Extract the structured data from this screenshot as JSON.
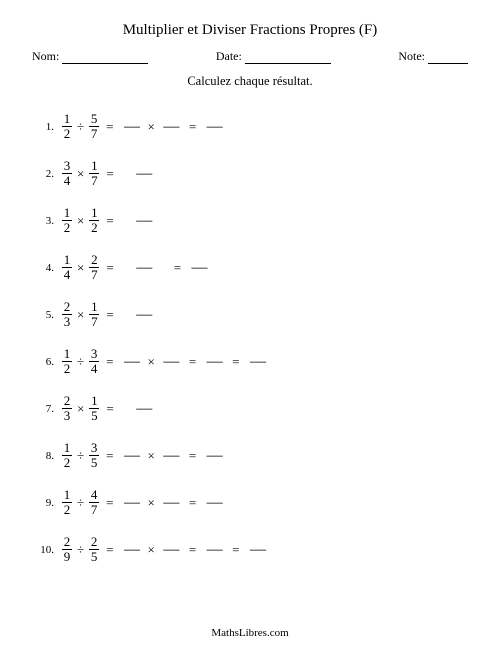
{
  "title": "Multiplier et Diviser Fractions Propres (F)",
  "header": {
    "name_label": "Nom:",
    "date_label": "Date:",
    "note_label": "Note:",
    "name_line_width": 86,
    "date_line_width": 86,
    "note_line_width": 40
  },
  "subtitle": "Calculez chaque résultat.",
  "op_symbols": {
    "times": "×",
    "divide": "÷",
    "equals": "="
  },
  "blank_glyph": "—",
  "problems": [
    {
      "n": "1.",
      "a": {
        "num": "1",
        "den": "2"
      },
      "op": "÷",
      "b": {
        "num": "5",
        "den": "7"
      },
      "tail": [
        "=",
        "B",
        "×",
        "B",
        "=",
        "B"
      ]
    },
    {
      "n": "2.",
      "a": {
        "num": "3",
        "den": "4"
      },
      "op": "×",
      "b": {
        "num": "1",
        "den": "7"
      },
      "tail": [
        "=",
        "S",
        "B"
      ]
    },
    {
      "n": "3.",
      "a": {
        "num": "1",
        "den": "2"
      },
      "op": "×",
      "b": {
        "num": "1",
        "den": "2"
      },
      "tail": [
        "=",
        "S",
        "B"
      ]
    },
    {
      "n": "4.",
      "a": {
        "num": "1",
        "den": "4"
      },
      "op": "×",
      "b": {
        "num": "2",
        "den": "7"
      },
      "tail": [
        "=",
        "S",
        "B",
        "S",
        "=",
        "B"
      ]
    },
    {
      "n": "5.",
      "a": {
        "num": "2",
        "den": "3"
      },
      "op": "×",
      "b": {
        "num": "1",
        "den": "7"
      },
      "tail": [
        "=",
        "S",
        "B"
      ]
    },
    {
      "n": "6.",
      "a": {
        "num": "1",
        "den": "2"
      },
      "op": "÷",
      "b": {
        "num": "3",
        "den": "4"
      },
      "tail": [
        "=",
        "B",
        "×",
        "B",
        "=",
        "B",
        "=",
        "B"
      ]
    },
    {
      "n": "7.",
      "a": {
        "num": "2",
        "den": "3"
      },
      "op": "×",
      "b": {
        "num": "1",
        "den": "5"
      },
      "tail": [
        "=",
        "S",
        "B"
      ]
    },
    {
      "n": "8.",
      "a": {
        "num": "1",
        "den": "2"
      },
      "op": "÷",
      "b": {
        "num": "3",
        "den": "5"
      },
      "tail": [
        "=",
        "B",
        "×",
        "B",
        "=",
        "B"
      ]
    },
    {
      "n": "9.",
      "a": {
        "num": "1",
        "den": "2"
      },
      "op": "÷",
      "b": {
        "num": "4",
        "den": "7"
      },
      "tail": [
        "=",
        "B",
        "×",
        "B",
        "=",
        "B"
      ]
    },
    {
      "n": "10.",
      "a": {
        "num": "2",
        "den": "9"
      },
      "op": "÷",
      "b": {
        "num": "2",
        "den": "5"
      },
      "tail": [
        "=",
        "B",
        "×",
        "B",
        "=",
        "B",
        "=",
        "B"
      ]
    }
  ],
  "footer": "MathsLibres.com",
  "colors": {
    "bg": "#ffffff",
    "text": "#000000",
    "line": "#000000"
  }
}
